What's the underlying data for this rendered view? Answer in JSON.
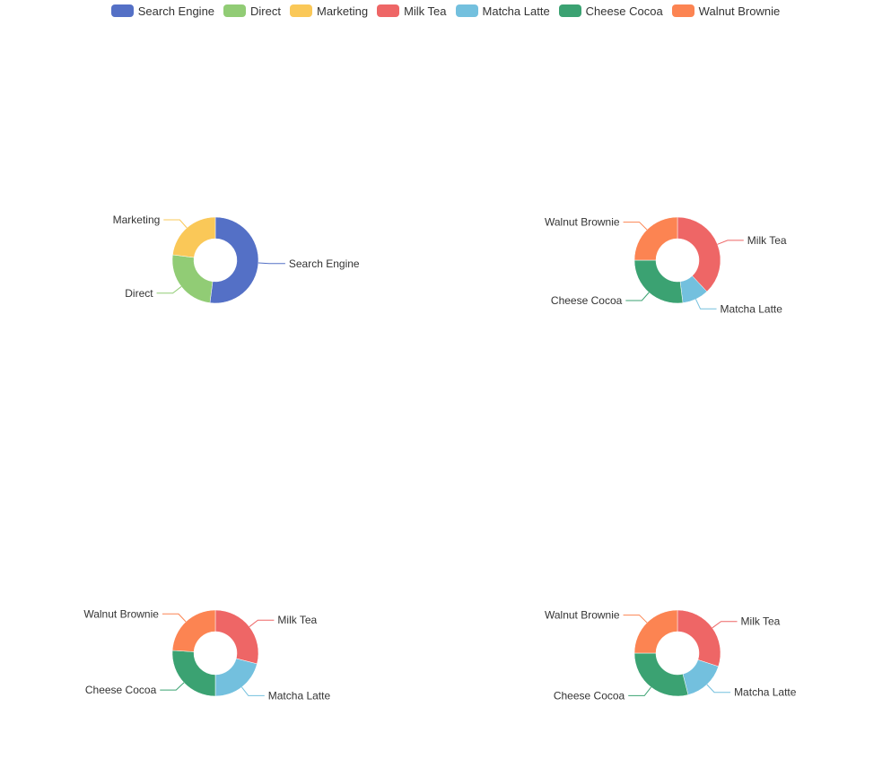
{
  "legend": [
    {
      "label": "Search Engine",
      "color": "#5470c6"
    },
    {
      "label": "Direct",
      "color": "#91cc75"
    },
    {
      "label": "Marketing",
      "color": "#fac858"
    },
    {
      "label": "Milk Tea",
      "color": "#ee6666"
    },
    {
      "label": "Matcha Latte",
      "color": "#73c0de"
    },
    {
      "label": "Cheese Cocoa",
      "color": "#3ba272"
    },
    {
      "label": "Walnut Brownie",
      "color": "#fc8452"
    }
  ],
  "chart_data": [
    {
      "type": "pie",
      "style": "donut",
      "categories": [
        "Search Engine",
        "Direct",
        "Marketing"
      ],
      "values": [
        52,
        25,
        23
      ],
      "colors": [
        "#5470c6",
        "#91cc75",
        "#fac858"
      ]
    },
    {
      "type": "pie",
      "style": "donut",
      "categories": [
        "Milk Tea",
        "Matcha Latte",
        "Cheese Cocoa",
        "Walnut Brownie"
      ],
      "values": [
        38,
        10,
        27,
        25
      ],
      "colors": [
        "#ee6666",
        "#73c0de",
        "#3ba272",
        "#fc8452"
      ]
    },
    {
      "type": "pie",
      "style": "donut",
      "categories": [
        "Milk Tea",
        "Matcha Latte",
        "Cheese Cocoa",
        "Walnut Brownie"
      ],
      "values": [
        29,
        21,
        26,
        24
      ],
      "colors": [
        "#ee6666",
        "#73c0de",
        "#3ba272",
        "#fc8452"
      ]
    },
    {
      "type": "pie",
      "style": "donut",
      "categories": [
        "Milk Tea",
        "Matcha Latte",
        "Cheese Cocoa",
        "Walnut Brownie"
      ],
      "values": [
        30,
        16,
        29,
        25
      ],
      "colors": [
        "#ee6666",
        "#73c0de",
        "#3ba272",
        "#fc8452"
      ]
    }
  ]
}
